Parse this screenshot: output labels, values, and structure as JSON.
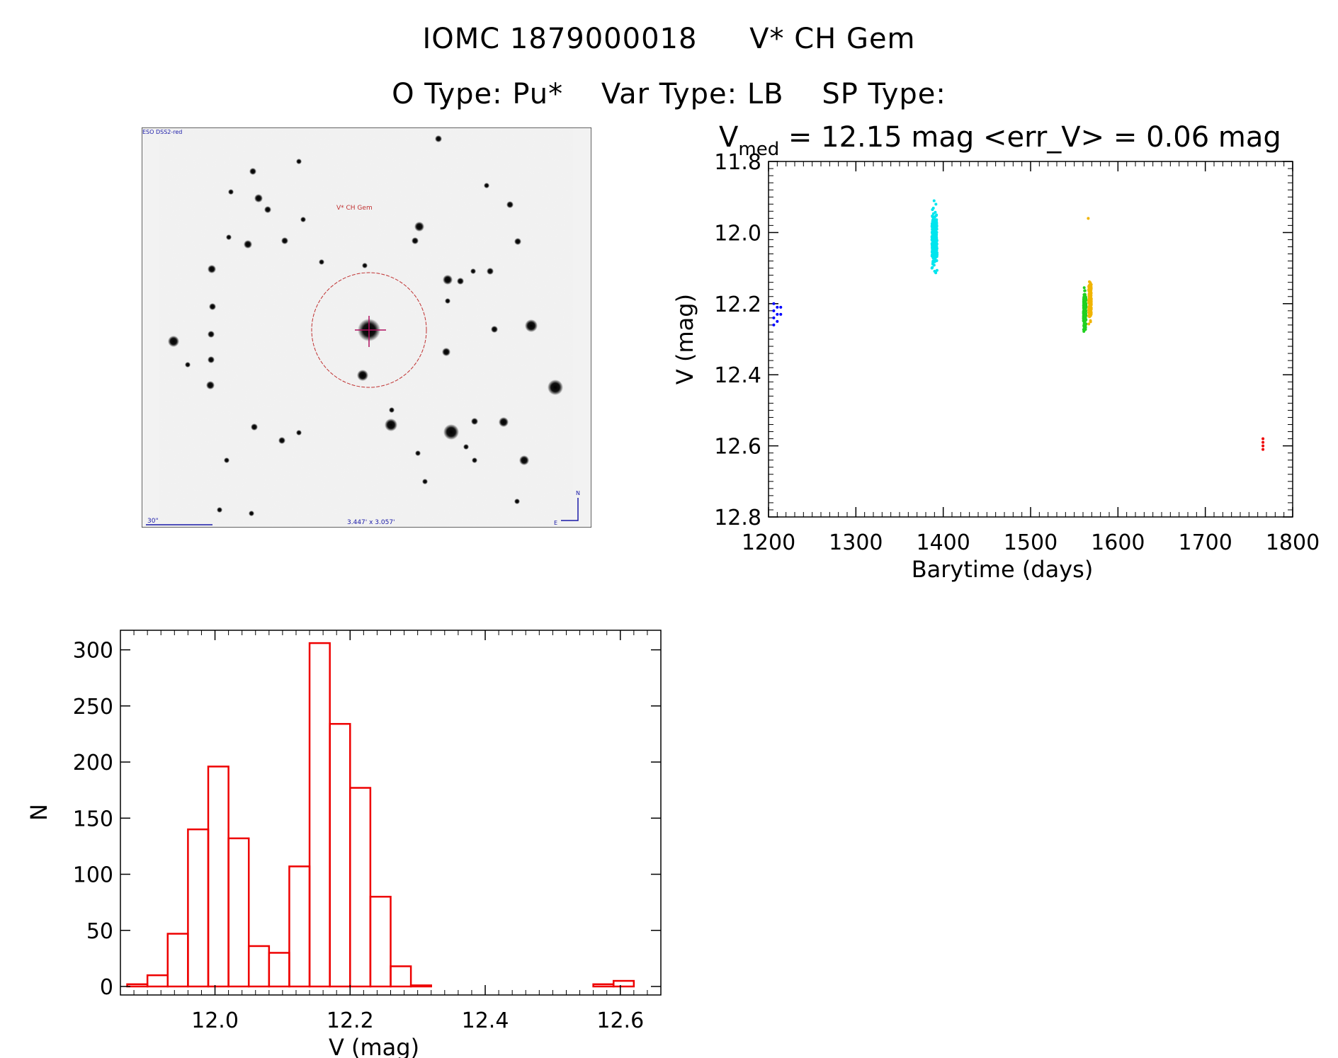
{
  "header": {
    "line1_id": "IOMC 1879000018",
    "line1_name": "V* CH Gem",
    "line2_otype": "O Type: Pu*",
    "line2_vartype": "Var Type: LB",
    "line2_sptype": "SP Type:"
  },
  "finder": {
    "survey_label": "ESO DSS2-red",
    "target_label": "V* CH Gem",
    "scale_label": "30\"",
    "fov_label": "3.447' x 3.057'",
    "north_label": "N",
    "east_label": "E",
    "circle_color": "#c03030",
    "label_color": "#1a1aa8"
  },
  "chart_data": [
    {
      "type": "scatter",
      "title_prefix": "V",
      "title_sub": "med",
      "title_rest": " = 12.15 mag <err_V> = 0.06 mag",
      "xlabel": "Barytime (days)",
      "ylabel": "V (mag)",
      "xlim": [
        1200,
        1800
      ],
      "ylim": [
        12.8,
        11.8
      ],
      "xticks": [
        "1200",
        "1300",
        "1400",
        "1500",
        "1600",
        "1700",
        "1800"
      ],
      "yticks": [
        "11.8",
        "12.0",
        "12.2",
        "12.4",
        "12.6",
        "12.8"
      ],
      "series": [
        {
          "color": "#0000ff",
          "points": [
            [
              1206,
              12.2
            ],
            [
              1206,
              12.22
            ],
            [
              1206,
              12.24
            ],
            [
              1206,
              12.26
            ],
            [
              1210,
              12.21
            ],
            [
              1210,
              12.23
            ],
            [
              1210,
              12.25
            ],
            [
              1214,
              12.21
            ],
            [
              1214,
              12.23
            ]
          ]
        },
        {
          "color": "#00e5ee",
          "xcenter": 1390,
          "xspread": 6,
          "ymin": 11.87,
          "ymax": 12.16,
          "ycenter": 12.02,
          "n": 260
        },
        {
          "color": "#20d020",
          "xcenter": 1562,
          "xspread": 3,
          "ymin": 12.12,
          "ymax": 12.31,
          "ycenter": 12.22,
          "n": 200
        },
        {
          "color": "#f0b400",
          "xcenter": 1568,
          "xspread": 3,
          "ymin": 12.09,
          "ymax": 12.28,
          "ycenter": 12.19,
          "n": 200
        },
        {
          "color": "#f0b400",
          "points": [
            [
              1566,
              11.96
            ]
          ]
        },
        {
          "color": "#ee0000",
          "points": [
            [
              1766,
              12.58
            ],
            [
              1766,
              12.59
            ],
            [
              1766,
              12.6
            ],
            [
              1766,
              12.61
            ]
          ]
        }
      ]
    },
    {
      "type": "bar",
      "xlabel": "V (mag)",
      "ylabel": "N",
      "xlim": [
        11.86,
        12.66
      ],
      "ylim": [
        0,
        325
      ],
      "bar_color": "#ee0000",
      "bin_width": 0.03,
      "xticks": [
        "12.0",
        "12.2",
        "12.4",
        "12.6"
      ],
      "yticks": [
        "0",
        "50",
        "100",
        "150",
        "200",
        "250",
        "300"
      ],
      "bin_starts": [
        11.87,
        11.9,
        11.93,
        11.96,
        11.99,
        12.02,
        12.05,
        12.08,
        12.11,
        12.14,
        12.17,
        12.2,
        12.23,
        12.26,
        12.29,
        12.32,
        12.35,
        12.38,
        12.41,
        12.44,
        12.47,
        12.5,
        12.53,
        12.56,
        12.59
      ],
      "counts": [
        2,
        10,
        47,
        140,
        196,
        132,
        36,
        30,
        107,
        306,
        234,
        177,
        80,
        18,
        1,
        0,
        0,
        0,
        0,
        0,
        0,
        0,
        0,
        2,
        5
      ]
    }
  ]
}
